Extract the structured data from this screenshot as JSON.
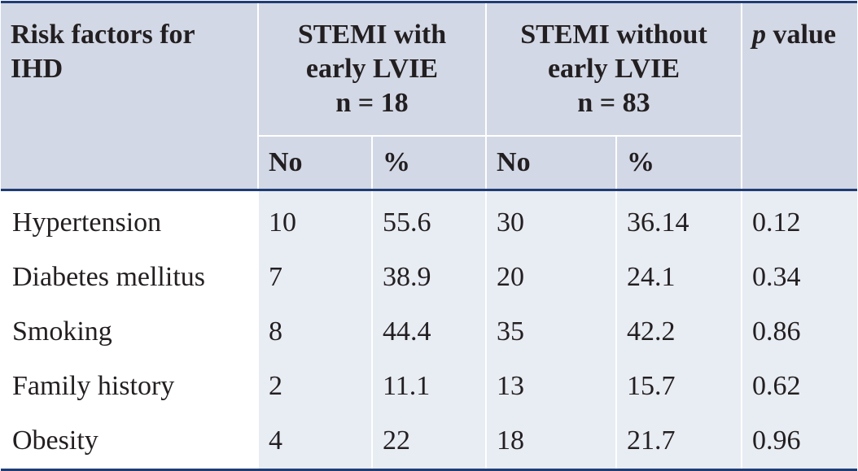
{
  "table": {
    "header": {
      "risk_factor": "Risk factors for IHD",
      "group_with": {
        "line1": "STEMI with",
        "line2": "early LVIE",
        "line3": "n = 18"
      },
      "group_without": {
        "line1": "STEMI without",
        "line2": "early LVIE",
        "line3": "n = 83"
      },
      "p_letter": "p",
      "p_rest": " value",
      "sub": {
        "with_no": "No",
        "with_pct": "%",
        "without_no": "No",
        "without_pct": "%"
      }
    },
    "rows": [
      {
        "factor": "Hypertension",
        "with_no": "10",
        "with_pct": "55.6",
        "without_no": "30",
        "without_pct": "36.14",
        "p": "0.12"
      },
      {
        "factor": "Diabetes mellitus",
        "with_no": "7",
        "with_pct": "38.9",
        "without_no": "20",
        "without_pct": "24.1",
        "p": "0.34"
      },
      {
        "factor": "Smoking",
        "with_no": "8",
        "with_pct": "44.4",
        "without_no": "35",
        "without_pct": "42.2",
        "p": "0.86"
      },
      {
        "factor": "Family history",
        "with_no": "2",
        "with_pct": "11.1",
        "without_no": "13",
        "without_pct": "15.7",
        "p": "0.62"
      },
      {
        "factor": "Obesity",
        "with_no": "4",
        "with_pct": "22",
        "without_no": "18",
        "without_pct": "21.7",
        "p": "0.96"
      }
    ]
  }
}
